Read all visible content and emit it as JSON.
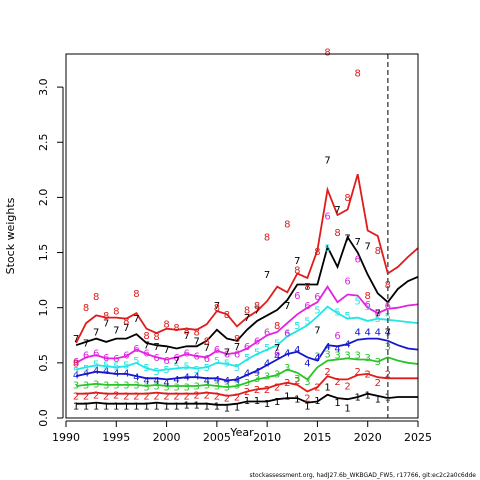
{
  "chart_data": {
    "type": "line",
    "xlabel": "Year",
    "ylabel": "Stock weights",
    "xlim": [
      1990,
      2025
    ],
    "ylim": [
      0,
      3.3
    ],
    "x_ticks": [
      1990,
      1995,
      2000,
      2005,
      2010,
      2015,
      2020,
      2025
    ],
    "y_ticks": [
      0.0,
      0.5,
      1.0,
      1.5,
      2.0,
      2.5,
      3.0
    ],
    "x_tick_labels": [
      "1990",
      "1995",
      "2000",
      "2005",
      "2010",
      "2015",
      "2020",
      "2025"
    ],
    "y_tick_labels": [
      "0.0",
      "0.5",
      "1.0",
      "1.5",
      "2.0",
      "2.5",
      "3.0"
    ],
    "vertical_line_x": 2022,
    "grid": false,
    "series": [
      {
        "label": "1",
        "color": "#000000",
        "x": [
          1991,
          1992,
          1993,
          1994,
          1995,
          1996,
          1997,
          1998,
          1999,
          2000,
          2001,
          2002,
          2003,
          2004,
          2005,
          2006,
          2007,
          2008,
          2009,
          2010,
          2011,
          2012,
          2013,
          2014,
          2015,
          2016,
          2017,
          2018,
          2019,
          2020,
          2021,
          2022,
          2023,
          2024,
          2025
        ],
        "fit": [
          0.13,
          0.13,
          0.14,
          0.13,
          0.13,
          0.13,
          0.13,
          0.13,
          0.14,
          0.13,
          0.13,
          0.13,
          0.13,
          0.13,
          0.12,
          0.12,
          0.13,
          0.15,
          0.15,
          0.15,
          0.17,
          0.18,
          0.18,
          0.14,
          0.15,
          0.21,
          0.18,
          0.17,
          0.19,
          0.22,
          0.2,
          0.18,
          0.19,
          0.19,
          0.19
        ],
        "obs_x": [
          1991,
          1992,
          1993,
          1994,
          1995,
          1996,
          1997,
          1998,
          1999,
          2000,
          2001,
          2002,
          2003,
          2004,
          2005,
          2006,
          2007,
          2008,
          2009,
          2010,
          2011,
          2012,
          2013,
          2014,
          2015,
          2016,
          2017,
          2018,
          2019,
          2020,
          2021,
          2022
        ],
        "obs_y": [
          0.11,
          0.11,
          0.11,
          0.11,
          0.11,
          0.11,
          0.11,
          0.11,
          0.11,
          0.11,
          0.11,
          0.12,
          0.12,
          0.11,
          0.11,
          0.09,
          0.1,
          0.16,
          0.16,
          0.13,
          0.15,
          0.2,
          0.17,
          0.11,
          0.16,
          0.28,
          0.14,
          0.09,
          0.19,
          0.21,
          0.17,
          0.19
        ]
      },
      {
        "label": "2",
        "color": "#df1c1c",
        "x": [
          1991,
          1992,
          1993,
          1994,
          1995,
          1996,
          1997,
          1998,
          1999,
          2000,
          2001,
          2002,
          2003,
          2004,
          2005,
          2006,
          2007,
          2008,
          2009,
          2010,
          2011,
          2012,
          2013,
          2014,
          2015,
          2016,
          2017,
          2018,
          2019,
          2020,
          2021,
          2022,
          2023,
          2024,
          2025
        ],
        "fit": [
          0.22,
          0.22,
          0.23,
          0.22,
          0.22,
          0.22,
          0.22,
          0.22,
          0.23,
          0.22,
          0.22,
          0.22,
          0.22,
          0.23,
          0.22,
          0.2,
          0.21,
          0.24,
          0.26,
          0.27,
          0.3,
          0.32,
          0.3,
          0.24,
          0.28,
          0.38,
          0.35,
          0.35,
          0.39,
          0.4,
          0.37,
          0.36,
          0.36,
          0.36,
          0.36
        ],
        "obs_x": [
          1991,
          1992,
          1993,
          1994,
          1995,
          1996,
          1997,
          1998,
          1999,
          2000,
          2001,
          2002,
          2003,
          2004,
          2005,
          2006,
          2007,
          2008,
          2009,
          2010,
          2011,
          2012,
          2013,
          2014,
          2015,
          2016,
          2017,
          2018,
          2019,
          2020,
          2021,
          2022
        ],
        "obs_y": [
          0.2,
          0.2,
          0.21,
          0.2,
          0.21,
          0.2,
          0.2,
          0.2,
          0.2,
          0.2,
          0.2,
          0.2,
          0.21,
          0.21,
          0.2,
          0.18,
          0.19,
          0.24,
          0.26,
          0.26,
          0.28,
          0.32,
          0.34,
          0.18,
          0.28,
          0.42,
          0.33,
          0.29,
          0.42,
          0.4,
          0.32,
          0.4
        ]
      },
      {
        "label": "3",
        "color": "#28c428",
        "x": [
          1991,
          1992,
          1993,
          1994,
          1995,
          1996,
          1997,
          1998,
          1999,
          2000,
          2001,
          2002,
          2003,
          2004,
          2005,
          2006,
          2007,
          2008,
          2009,
          2010,
          2011,
          2012,
          2013,
          2014,
          2015,
          2016,
          2017,
          2018,
          2019,
          2020,
          2021,
          2022,
          2023,
          2024,
          2025
        ],
        "fit": [
          0.29,
          0.3,
          0.31,
          0.3,
          0.3,
          0.3,
          0.3,
          0.29,
          0.3,
          0.29,
          0.29,
          0.29,
          0.29,
          0.3,
          0.29,
          0.28,
          0.29,
          0.32,
          0.35,
          0.37,
          0.39,
          0.44,
          0.41,
          0.35,
          0.46,
          0.52,
          0.53,
          0.54,
          0.53,
          0.53,
          0.51,
          0.55,
          0.52,
          0.5,
          0.49
        ],
        "obs_x": [
          1991,
          1992,
          1993,
          1994,
          1995,
          1996,
          1997,
          1998,
          1999,
          2000,
          2001,
          2002,
          2003,
          2004,
          2005,
          2006,
          2007,
          2008,
          2009,
          2010,
          2011,
          2012,
          2013,
          2014,
          2015,
          2016,
          2017,
          2018,
          2019,
          2020,
          2021,
          2022
        ],
        "obs_y": [
          0.3,
          0.3,
          0.31,
          0.3,
          0.3,
          0.3,
          0.3,
          0.28,
          0.29,
          0.28,
          0.28,
          0.28,
          0.29,
          0.3,
          0.29,
          0.28,
          0.3,
          0.32,
          0.36,
          0.38,
          0.4,
          0.46,
          0.36,
          0.33,
          0.56,
          0.58,
          0.57,
          0.57,
          0.57,
          0.55,
          0.51,
          0.65
        ]
      },
      {
        "label": "4",
        "color": "#1616cf",
        "x": [
          1991,
          1992,
          1993,
          1994,
          1995,
          1996,
          1997,
          1998,
          1999,
          2000,
          2001,
          2002,
          2003,
          2004,
          2005,
          2006,
          2007,
          2008,
          2009,
          2010,
          2011,
          2012,
          2013,
          2014,
          2015,
          2016,
          2017,
          2018,
          2019,
          2020,
          2021,
          2022,
          2023,
          2024,
          2025
        ],
        "fit": [
          0.38,
          0.4,
          0.42,
          0.41,
          0.4,
          0.4,
          0.38,
          0.36,
          0.36,
          0.35,
          0.36,
          0.37,
          0.37,
          0.36,
          0.36,
          0.34,
          0.35,
          0.39,
          0.43,
          0.48,
          0.53,
          0.58,
          0.6,
          0.55,
          0.52,
          0.66,
          0.65,
          0.67,
          0.71,
          0.72,
          0.72,
          0.7,
          0.66,
          0.63,
          0.62
        ],
        "obs_x": [
          1991,
          1992,
          1993,
          1994,
          1995,
          1996,
          1997,
          1998,
          1999,
          2000,
          2001,
          2002,
          2003,
          2004,
          2005,
          2006,
          2007,
          2008,
          2009,
          2010,
          2011,
          2012,
          2013,
          2014,
          2015,
          2016,
          2017,
          2018,
          2019,
          2020,
          2021,
          2022
        ],
        "obs_y": [
          0.39,
          0.41,
          0.43,
          0.43,
          0.41,
          0.41,
          0.37,
          0.34,
          0.34,
          0.32,
          0.35,
          0.37,
          0.38,
          0.34,
          0.35,
          0.34,
          0.35,
          0.41,
          0.42,
          0.5,
          0.56,
          0.59,
          0.62,
          0.5,
          0.55,
          0.65,
          0.63,
          0.67,
          0.78,
          0.78,
          0.78,
          0.78
        ]
      },
      {
        "label": "5",
        "color": "#22e6e6",
        "x": [
          1991,
          1992,
          1993,
          1994,
          1995,
          1996,
          1997,
          1998,
          1999,
          2000,
          2001,
          2002,
          2003,
          2004,
          2005,
          2006,
          2007,
          2008,
          2009,
          2010,
          2011,
          2012,
          2013,
          2014,
          2015,
          2016,
          2017,
          2018,
          2019,
          2020,
          2021,
          2022,
          2023,
          2024,
          2025
        ],
        "fit": [
          0.44,
          0.46,
          0.48,
          0.47,
          0.46,
          0.47,
          0.5,
          0.45,
          0.43,
          0.44,
          0.45,
          0.46,
          0.45,
          0.46,
          0.5,
          0.49,
          0.47,
          0.53,
          0.58,
          0.62,
          0.66,
          0.74,
          0.79,
          0.84,
          0.92,
          1.01,
          0.95,
          0.9,
          0.91,
          0.88,
          0.9,
          0.89,
          0.88,
          0.87,
          0.86
        ],
        "obs_x": [
          1991,
          1992,
          1993,
          1994,
          1995,
          1996,
          1997,
          1998,
          1999,
          2000,
          2001,
          2002,
          2003,
          2004,
          2005,
          2006,
          2007,
          2008,
          2009,
          2010,
          2011,
          2012,
          2013,
          2014,
          2015,
          2016,
          2017,
          2018,
          2019,
          2020,
          2021,
          2022
        ],
        "obs_y": [
          0.43,
          0.45,
          0.49,
          0.48,
          0.47,
          0.48,
          0.52,
          0.46,
          0.42,
          0.44,
          0.47,
          0.47,
          0.44,
          0.46,
          0.52,
          0.5,
          0.46,
          0.55,
          0.6,
          0.64,
          0.68,
          0.76,
          0.84,
          0.88,
          0.98,
          1.54,
          0.96,
          0.93,
          1.06,
          1.01,
          0.9,
          0.92
        ]
      },
      {
        "label": "6",
        "color": "#e223e2",
        "x": [
          1991,
          1992,
          1993,
          1994,
          1995,
          1996,
          1997,
          1998,
          1999,
          2000,
          2001,
          2002,
          2003,
          2004,
          2005,
          2006,
          2007,
          2008,
          2009,
          2010,
          2011,
          2012,
          2013,
          2014,
          2015,
          2016,
          2017,
          2018,
          2019,
          2020,
          2021,
          2022,
          2023,
          2024,
          2025
        ],
        "fit": [
          0.5,
          0.55,
          0.57,
          0.54,
          0.54,
          0.56,
          0.62,
          0.58,
          0.55,
          0.53,
          0.55,
          0.58,
          0.56,
          0.55,
          0.61,
          0.58,
          0.59,
          0.63,
          0.69,
          0.75,
          0.78,
          0.86,
          0.94,
          1.0,
          1.05,
          1.19,
          1.05,
          1.12,
          1.11,
          1.0,
          0.95,
          0.99,
          1.0,
          1.02,
          1.03
        ],
        "obs_x": [
          1991,
          1992,
          1993,
          1994,
          1995,
          1996,
          1997,
          1998,
          1999,
          2000,
          2001,
          2002,
          2003,
          2004,
          2005,
          2006,
          2007,
          2008,
          2009,
          2010,
          2011,
          2012,
          2013,
          2014,
          2015,
          2016,
          2017,
          2018,
          2019,
          2020,
          2021,
          2022
        ],
        "obs_y": [
          0.51,
          0.57,
          0.59,
          0.55,
          0.54,
          0.57,
          0.63,
          0.59,
          0.55,
          0.52,
          0.55,
          0.59,
          0.56,
          0.54,
          0.62,
          0.58,
          0.58,
          0.65,
          0.7,
          0.78,
          0.59,
          0.77,
          1.11,
          1.02,
          1.1,
          1.83,
          0.75,
          1.24,
          1.44,
          1.03,
          0.95,
          1.02
        ]
      },
      {
        "label": "7",
        "color": "#000000",
        "x": [
          1991,
          1992,
          1993,
          1994,
          1995,
          1996,
          1997,
          1998,
          1999,
          2000,
          2001,
          2002,
          2003,
          2004,
          2005,
          2006,
          2007,
          2008,
          2009,
          2010,
          2011,
          2012,
          2013,
          2014,
          2015,
          2016,
          2017,
          2018,
          2019,
          2020,
          2021,
          2022,
          2023,
          2024,
          2025
        ],
        "fit": [
          0.66,
          0.69,
          0.72,
          0.69,
          0.72,
          0.72,
          0.76,
          0.68,
          0.66,
          0.65,
          0.63,
          0.65,
          0.65,
          0.7,
          0.8,
          0.72,
          0.7,
          0.8,
          0.88,
          0.93,
          0.98,
          1.07,
          1.21,
          1.21,
          1.21,
          1.55,
          1.37,
          1.64,
          1.5,
          1.3,
          1.13,
          1.05,
          1.17,
          1.24,
          1.28
        ],
        "obs_x": [
          1991,
          1992,
          1993,
          1994,
          1995,
          1996,
          1997,
          1998,
          1999,
          2000,
          2001,
          2002,
          2003,
          2004,
          2005,
          2006,
          2007,
          2008,
          2009,
          2010,
          2011,
          2012,
          2013,
          2014,
          2015,
          2016,
          2017,
          2018,
          2019,
          2020,
          2021,
          2022
        ],
        "obs_y": [
          0.72,
          0.68,
          0.78,
          0.86,
          0.8,
          0.82,
          0.9,
          0.66,
          0.65,
          0.62,
          0.52,
          0.75,
          0.7,
          0.64,
          1.02,
          0.6,
          0.65,
          0.91,
          0.98,
          1.3,
          0.64,
          1.02,
          1.43,
          1.19,
          0.8,
          2.34,
          1.89,
          1.63,
          1.6,
          1.56,
          0.95,
          0.78
        ]
      },
      {
        "label": "8",
        "color": "#df1c1c",
        "x": [
          1991,
          1992,
          1993,
          1994,
          1995,
          1996,
          1997,
          1998,
          1999,
          2000,
          2001,
          2002,
          2003,
          2004,
          2005,
          2006,
          2007,
          2008,
          2009,
          2010,
          2011,
          2012,
          2013,
          2014,
          2015,
          2016,
          2017,
          2018,
          2019,
          2020,
          2021,
          2022,
          2023,
          2024,
          2025
        ],
        "fit": [
          0.68,
          0.86,
          0.93,
          0.91,
          0.91,
          0.9,
          0.95,
          0.81,
          0.77,
          0.81,
          0.8,
          0.81,
          0.8,
          0.85,
          0.97,
          0.94,
          0.83,
          0.91,
          0.97,
          1.06,
          1.19,
          1.14,
          1.31,
          1.27,
          1.52,
          2.07,
          1.84,
          1.89,
          2.21,
          1.7,
          1.65,
          1.31,
          1.37,
          1.46,
          1.54
        ],
        "obs_x": [
          1991,
          1992,
          1993,
          1994,
          1995,
          1996,
          1997,
          1998,
          1999,
          2000,
          2001,
          2002,
          2003,
          2004,
          2005,
          2006,
          2007,
          2008,
          2009,
          2010,
          2011,
          2012,
          2013,
          2014,
          2015,
          2016,
          2017,
          2018,
          2019,
          2020,
          2021,
          2022
        ],
        "obs_y": [
          0.5,
          1.0,
          1.1,
          0.93,
          0.97,
          0.88,
          1.13,
          0.75,
          0.74,
          0.85,
          0.82,
          0.79,
          0.78,
          0.7,
          1.0,
          0.94,
          0.72,
          0.98,
          1.02,
          1.64,
          0.84,
          1.76,
          1.34,
          1.19,
          1.51,
          3.32,
          1.68,
          2.0,
          3.13,
          1.11,
          1.52,
          1.21
        ]
      }
    ],
    "footer_text": "stockassessment.org, hadJ27.6b_WKBGAD_FW5, r17766, git:ec2c2a0c6dde"
  }
}
